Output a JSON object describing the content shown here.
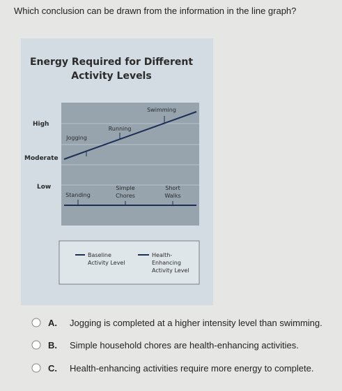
{
  "question": "Which conclusion can be drawn from the information in the line graph?",
  "graph": {
    "title_lines": [
      "Energy Required for Different",
      "Activity Levels"
    ],
    "levels": [
      "High",
      "Moderate",
      "Low"
    ],
    "activities": {
      "swimming": [
        "Swimming"
      ],
      "running": [
        "Running"
      ],
      "jogging": [
        "Jogging"
      ],
      "standing": [
        "Standing"
      ],
      "simple_chores": [
        "Simple",
        "Chores"
      ],
      "short_walks": [
        "Short",
        "Walks"
      ]
    },
    "legend": [
      {
        "lines": [
          "Baseline",
          "Activity Level"
        ]
      },
      {
        "lines": [
          "Health-",
          "Enhancing",
          "Activity Level"
        ]
      }
    ]
  },
  "options": [
    {
      "letter": "A.",
      "text": "Jogging is completed at a higher intensity level than swimming."
    },
    {
      "letter": "B.",
      "text": "Simple household chores are health-enhancing activities."
    },
    {
      "letter": "C.",
      "text": "Health-enhancing activities require more energy to complete."
    }
  ]
}
